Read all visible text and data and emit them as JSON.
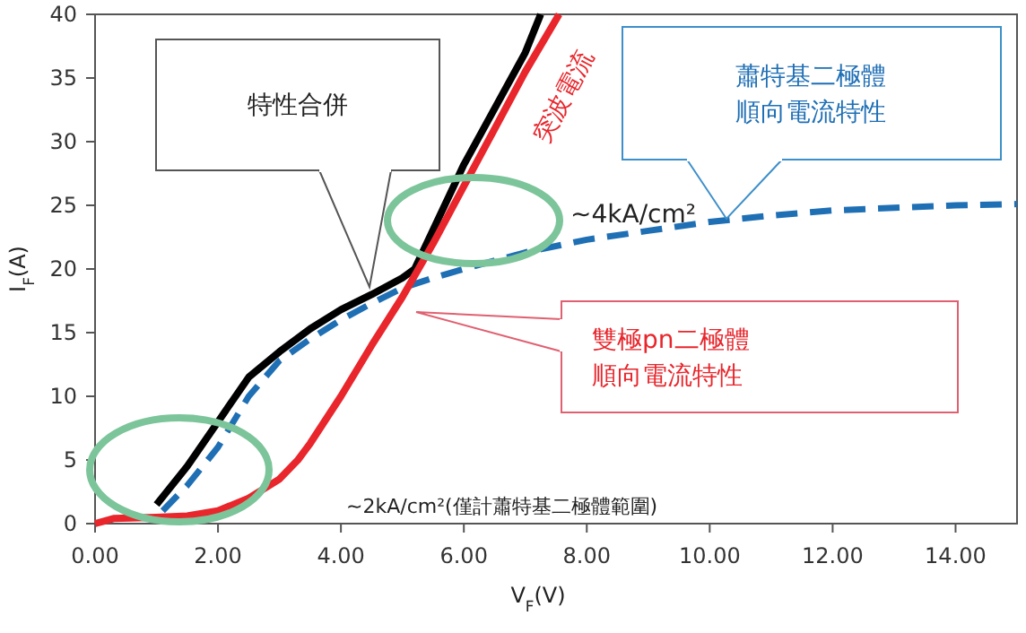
{
  "chart_data": {
    "type": "line",
    "xlabel": "V$_{F}$(V)",
    "ylabel": "I$_{F}$(A)",
    "xlim": [
      0,
      15
    ],
    "ylim": [
      0,
      40
    ],
    "xticks": [
      {
        "value": 0,
        "label": "0.00"
      },
      {
        "value": 2,
        "label": "2.00"
      },
      {
        "value": 4,
        "label": "4.00"
      },
      {
        "value": 6,
        "label": "6.00"
      },
      {
        "value": 8,
        "label": "8.00"
      },
      {
        "value": 10,
        "label": "10.00"
      },
      {
        "value": 12,
        "label": "12.00"
      },
      {
        "value": 14,
        "label": "14.00"
      }
    ],
    "yticks": [
      0,
      5,
      10,
      15,
      20,
      25,
      30,
      35,
      40
    ],
    "series": [
      {
        "color": "#000000",
        "line_style": "solid",
        "x": [
          1.0,
          1.5,
          2.0,
          2.5,
          3.0,
          3.5,
          4.0,
          4.5,
          5.0,
          5.2,
          6.0,
          7.0,
          7.25
        ],
        "values": [
          1.5,
          4.5,
          8,
          11.5,
          13.5,
          15.3,
          16.8,
          18,
          19.3,
          20,
          28.2,
          37,
          40
        ]
      },
      {
        "color": "#1f6fb5",
        "line_style": "dashed",
        "x": [
          1.1,
          1.5,
          2.0,
          2.5,
          3.0,
          3.5,
          4.0,
          4.5,
          5.0,
          5.5,
          6.0,
          7.0,
          8.0,
          9.0,
          10.0,
          11.0,
          12.0,
          13.0,
          14.0,
          15.0
        ],
        "values": [
          1,
          3,
          6,
          10,
          12.8,
          14.5,
          16,
          17.3,
          18.5,
          19.3,
          20,
          21.3,
          22.3,
          23,
          23.7,
          24.2,
          24.6,
          24.8,
          25,
          25.1
        ]
      },
      {
        "color": "#e8262c",
        "line_style": "solid",
        "x": [
          0,
          0.3,
          1.0,
          1.5,
          2.0,
          2.5,
          3.0,
          3.3,
          3.5,
          4.0,
          4.5,
          5.0,
          5.5,
          6.0,
          6.5,
          7.0,
          7.55
        ],
        "values": [
          0,
          0.4,
          0.5,
          0.6,
          1,
          2,
          3.5,
          5,
          6.3,
          10,
          14,
          17.8,
          22,
          26.5,
          31,
          35.5,
          40
        ]
      }
    ],
    "annotations": [
      "特性合併",
      "突波電流",
      "蕭特基二極體",
      "順向電流特性",
      "~4kA/cm²",
      "雙極pn二極體",
      "順向電流特性",
      "~2kA/cm²(僅計蕭特基二極體範圍)"
    ]
  }
}
